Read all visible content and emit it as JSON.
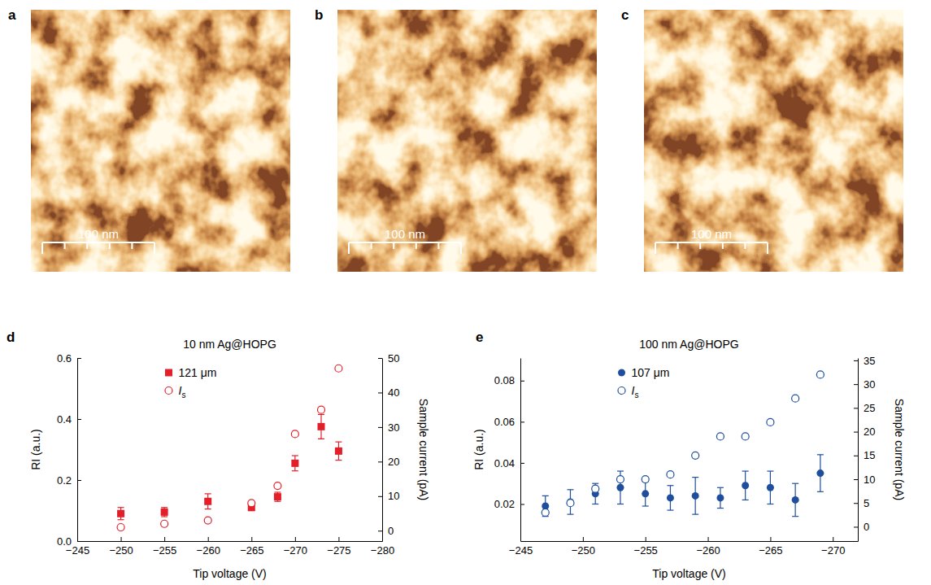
{
  "images": [
    {
      "letter": "a",
      "scale_bar": "100 nm"
    },
    {
      "letter": "b",
      "scale_bar": "100 nm"
    },
    {
      "letter": "c",
      "scale_bar": "100 nm"
    }
  ],
  "chart_data": [
    {
      "type": "scatter",
      "panel_label": "d",
      "title": "10 nm Ag@HOPG",
      "x_label": "Tip voltage (V)",
      "y_label": "RI (a.u.)",
      "y2_label": "Sample current (pA)",
      "x": [
        -250,
        -255,
        -260,
        -265,
        -268,
        -270,
        -273,
        -275
      ],
      "series": [
        {
          "name": "121 μm",
          "color": "#e3202a",
          "marker": "square",
          "values": [
            0.09,
            0.095,
            0.13,
            0.11,
            0.145,
            0.255,
            0.375,
            0.295
          ],
          "error": [
            0.02,
            0.015,
            0.025,
            0.01,
            0.015,
            0.025,
            0.04,
            0.03
          ]
        },
        {
          "name": "Is",
          "color": "#e3202a",
          "marker": "open-circle",
          "axis": "y2",
          "values": [
            1,
            2,
            3,
            8,
            13,
            28,
            35,
            47
          ]
        }
      ],
      "xlim": [
        -245,
        -280
      ],
      "xticks": [
        {
          "value": -245,
          "label": "−245"
        },
        {
          "value": -250,
          "label": "−250"
        },
        {
          "value": -255,
          "label": "−255"
        },
        {
          "value": -260,
          "label": "−260"
        },
        {
          "value": -265,
          "label": "−265"
        },
        {
          "value": -270,
          "label": "−270"
        },
        {
          "value": -275,
          "label": "−275"
        },
        {
          "value": -280,
          "label": "−280"
        }
      ],
      "ylim": [
        0,
        0.6
      ],
      "yticks": [
        {
          "value": 0,
          "label": "0.0"
        },
        0.2,
        0.4,
        0.6
      ],
      "y2lim": [
        -3,
        50
      ],
      "y2ticks": [
        0,
        10,
        20,
        30,
        40,
        50
      ],
      "legend": "upper left"
    },
    {
      "type": "scatter",
      "panel_label": "e",
      "title": "100 nm Ag@HOPG",
      "x_label": "Tip voltage (V)",
      "y_label": "RI (a.u.)",
      "y2_label": "Sample current (pA)",
      "x": [
        -247,
        -249,
        -251,
        -253,
        -255,
        -257,
        -259,
        -261,
        -263,
        -265,
        -267,
        -269
      ],
      "series": [
        {
          "name": "107 μm",
          "color": "#1f4e9c",
          "marker": "circle",
          "values": [
            0.019,
            0.021,
            0.025,
            0.028,
            0.025,
            0.023,
            0.024,
            0.023,
            0.029,
            0.028,
            0.022,
            0.035
          ],
          "error": [
            0.005,
            0.006,
            0.005,
            0.008,
            0.006,
            0.006,
            0.009,
            0.005,
            0.007,
            0.008,
            0.008,
            0.009
          ]
        },
        {
          "name": "Is",
          "color": "#1f4e9c",
          "marker": "open-circle",
          "axis": "y2",
          "values": [
            3,
            5,
            8,
            10,
            10,
            11,
            15,
            19,
            19,
            22,
            27,
            32
          ]
        }
      ],
      "xlim": [
        -245,
        -272
      ],
      "xticks": [
        {
          "value": -245,
          "label": "−245"
        },
        {
          "value": -250,
          "label": "−250"
        },
        {
          "value": -255,
          "label": "−255"
        },
        {
          "value": -260,
          "label": "−260"
        },
        {
          "value": -265,
          "label": "−265"
        },
        {
          "value": -270,
          "label": "−270"
        }
      ],
      "ylim": [
        0.002,
        0.091
      ],
      "yticks": [
        0.02,
        0.04,
        0.06,
        0.08
      ],
      "y2lim": [
        -3,
        35.5
      ],
      "y2ticks": [
        0,
        5,
        10,
        15,
        20,
        25,
        30,
        35
      ],
      "legend": "upper left"
    }
  ]
}
